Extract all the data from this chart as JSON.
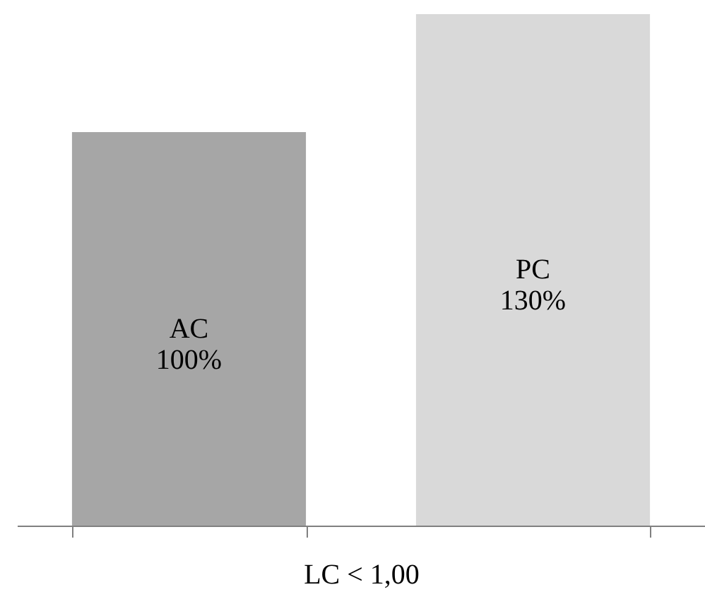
{
  "chart_data": {
    "type": "bar",
    "categories": [
      "AC",
      "PC"
    ],
    "values": [
      100,
      130
    ],
    "colors": [
      "#a6a6a6",
      "#d9d9d9"
    ],
    "value_labels": [
      "100%",
      "130%"
    ],
    "xlabel": "LC < 1,00"
  }
}
